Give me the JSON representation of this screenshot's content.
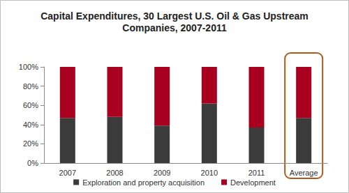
{
  "chart_data": {
    "type": "bar",
    "stacked": true,
    "title": "Capital Expenditures, 30 Largest U.S. Oil & Gas Upstream\nCompanies, 2007-2011",
    "categories": [
      "2007",
      "2008",
      "2009",
      "2010",
      "2011",
      "Average"
    ],
    "series": [
      {
        "name": "Exploration and property acquisition",
        "color": "#3b3b3b",
        "values": [
          47,
          48,
          39,
          62,
          37,
          47
        ]
      },
      {
        "name": "Development",
        "color": "#a8001e",
        "values": [
          53,
          52,
          61,
          38,
          63,
          53
        ]
      }
    ],
    "ylim": [
      0,
      100
    ],
    "yticks": [
      {
        "value": 0,
        "label": "0%"
      },
      {
        "value": 20,
        "label": "20%"
      },
      {
        "value": 40,
        "label": "40%"
      },
      {
        "value": 60,
        "label": "60%"
      },
      {
        "value": 80,
        "label": "80%"
      },
      {
        "value": 100,
        "label": "100%"
      }
    ],
    "grid": false,
    "legend": "bottom",
    "data_labels": false
  }
}
